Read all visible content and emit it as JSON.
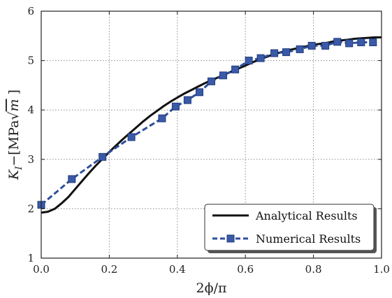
{
  "chart_data": {
    "type": "line",
    "title": "",
    "xlabel": "2ϕ/π",
    "ylabel": "K_I − [MPa√m ]",
    "ylabel_parts": {
      "symbol": "K",
      "subscript": "I",
      "dash": "−",
      "open": "[MPa",
      "radical": "√",
      "radicand": "m",
      "close": " ]"
    },
    "xlim": [
      0.0,
      1.0
    ],
    "ylim": [
      1,
      6
    ],
    "xticks": [
      "0.0",
      "0.2",
      "0.4",
      "0.6",
      "0.8",
      "1.0"
    ],
    "yticks": [
      "1",
      "2",
      "3",
      "4",
      "5",
      "6"
    ],
    "grid": true,
    "legend_position": "bottom-right",
    "series": [
      {
        "name": "Analytical Results",
        "style": "solid",
        "color": "#111111",
        "x": [
          0.0,
          0.02,
          0.04,
          0.06,
          0.08,
          0.1,
          0.12,
          0.14,
          0.16,
          0.18,
          0.2,
          0.22,
          0.24,
          0.26,
          0.28,
          0.3,
          0.32,
          0.34,
          0.36,
          0.38,
          0.4,
          0.42,
          0.44,
          0.46,
          0.48,
          0.5,
          0.52,
          0.54,
          0.56,
          0.58,
          0.6,
          0.62,
          0.64,
          0.66,
          0.68,
          0.7,
          0.72,
          0.74,
          0.76,
          0.78,
          0.8,
          0.82,
          0.84,
          0.86,
          0.88,
          0.9,
          0.92,
          0.94,
          0.96,
          0.98,
          1.0
        ],
        "y": [
          1.92,
          1.94,
          2.0,
          2.11,
          2.24,
          2.4,
          2.56,
          2.72,
          2.87,
          3.01,
          3.15,
          3.28,
          3.41,
          3.53,
          3.65,
          3.77,
          3.88,
          3.98,
          4.08,
          4.17,
          4.25,
          4.33,
          4.4,
          4.47,
          4.54,
          4.6,
          4.66,
          4.72,
          4.78,
          4.84,
          4.9,
          4.96,
          5.02,
          5.07,
          5.12,
          5.16,
          5.2,
          5.23,
          5.26,
          5.29,
          5.32,
          5.34,
          5.36,
          5.39,
          5.41,
          5.42,
          5.44,
          5.45,
          5.46,
          5.47,
          5.47
        ]
      },
      {
        "name": "Numerical Results",
        "style": "dashed",
        "marker": "square",
        "color": "#2d4e9c",
        "x": [
          0.0,
          0.09,
          0.18,
          0.265,
          0.355,
          0.395,
          0.43,
          0.465,
          0.5,
          0.535,
          0.57,
          0.61,
          0.645,
          0.685,
          0.72,
          0.76,
          0.795,
          0.835,
          0.87,
          0.905,
          0.94,
          0.975
        ],
        "y": [
          2.08,
          2.6,
          3.05,
          3.45,
          3.83,
          4.07,
          4.2,
          4.36,
          4.58,
          4.7,
          4.82,
          5.0,
          5.05,
          5.15,
          5.17,
          5.23,
          5.3,
          5.3,
          5.38,
          5.35,
          5.37,
          5.37
        ]
      }
    ]
  }
}
